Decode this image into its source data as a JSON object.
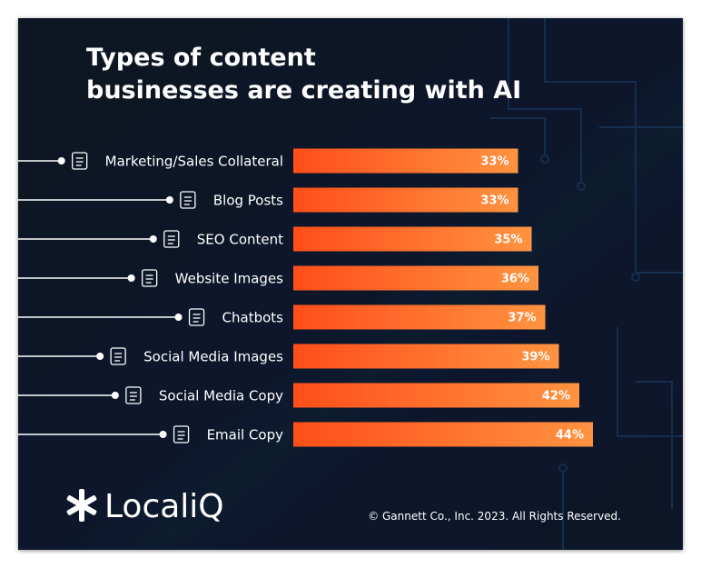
{
  "chart_data": {
    "type": "hbar",
    "title": [
      "Types of content",
      "businesses are creating with AI"
    ],
    "categories": [
      "Marketing/Sales Collateral",
      "Blog Posts",
      "SEO Content",
      "Website Images",
      "Chatbots",
      "Social Media Images",
      "Social Media Copy",
      "Email Copy"
    ],
    "values": [
      33,
      33,
      35,
      36,
      37,
      39,
      42,
      44
    ],
    "value_labels": [
      "33%",
      "33%",
      "35%",
      "36%",
      "37%",
      "39%",
      "42%",
      "44%"
    ],
    "color": "#ff6a24",
    "brand": "LocaliQ",
    "footer": "© Gannett Co., Inc. 2023. All Rights Reserved."
  }
}
